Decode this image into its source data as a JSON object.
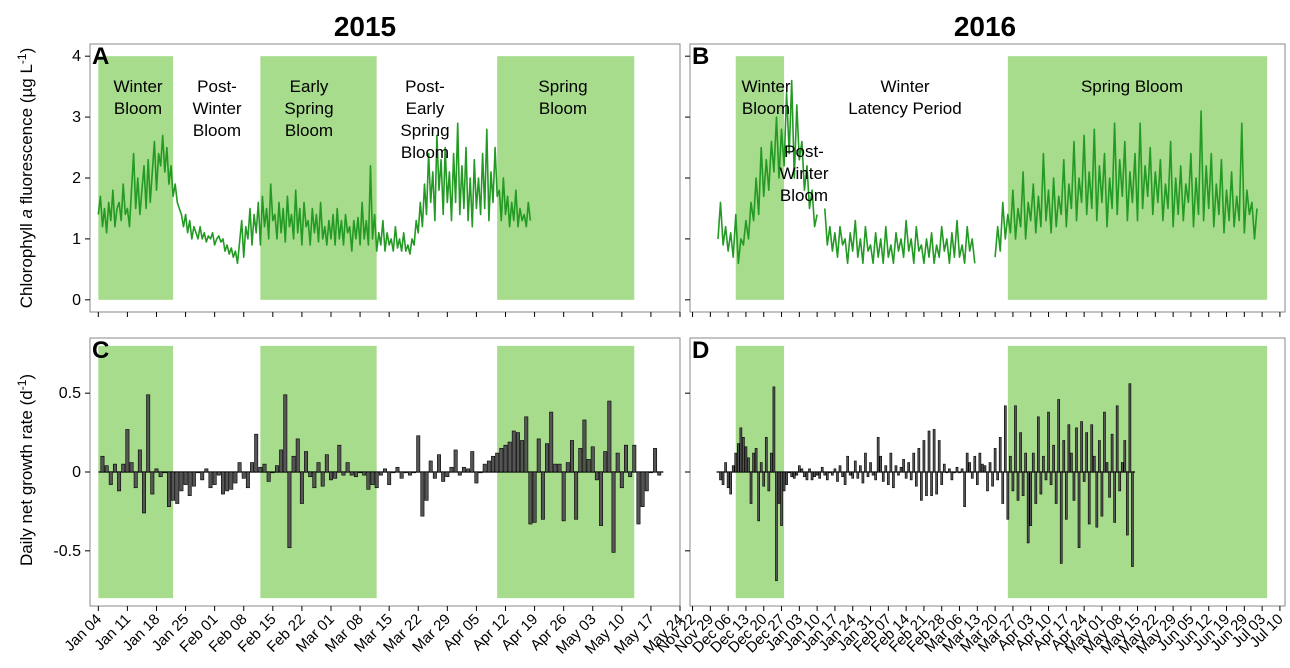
{
  "colors": {
    "bloom_fill": "#a6dc8c",
    "fluor_line": "#239a23",
    "bar_fill": "#555555",
    "frame": "#888888"
  },
  "titles": {
    "year_left": "2015",
    "year_right": "2016"
  },
  "ylabels": {
    "top": {
      "pre": "Chlorophyll ",
      "ital": "a",
      "post": " fluorescence (µg L",
      "sup": "-1",
      "close": ")"
    },
    "bottom": {
      "pre": "Daily net growth rate (d",
      "sup": "-1",
      "close": ")"
    }
  },
  "date_ticks_2015": [
    "Jan 04",
    "Jan 11",
    "Jan 18",
    "Jan 25",
    "Feb 01",
    "Feb 08",
    "Feb 15",
    "Feb 22",
    "Mar 01",
    "Mar 08",
    "Mar 15",
    "Mar 22",
    "Mar 29",
    "Apr 05",
    "Apr 12",
    "Apr 19",
    "Apr 26",
    "May 03",
    "May 10",
    "May 17",
    "May 24"
  ],
  "date_ticks_2016": [
    "Nov 22",
    "Nov 29",
    "Dec 06",
    "Dec 13",
    "Dec 20",
    "Dec 27",
    "Jan 03",
    "Jan 10",
    "Jan 17",
    "Jan 24",
    "Jan 31",
    "Feb 07",
    "Feb 14",
    "Feb 21",
    "Feb 28",
    "Mar 06",
    "Mar 13",
    "Mar 20",
    "Mar 27",
    "Apr 03",
    "Apr 10",
    "Apr 17",
    "Apr 24",
    "May 01",
    "May 08",
    "May 15",
    "May 22",
    "May 29",
    "Jun 05",
    "Jun 12",
    "Jun 19",
    "Jun 29",
    "Jul 03",
    "Jul 10"
  ],
  "chart_data": [
    {
      "panel": "A",
      "type": "line",
      "ylim": [
        -0.2,
        4.2
      ],
      "yticks": [
        "0",
        "1",
        "2",
        "3",
        "4"
      ],
      "x_range": [
        "2015-01-02",
        "2015-05-24"
      ],
      "phases": [
        {
          "name": "Winter Bloom",
          "start": "2015-01-04",
          "end": "2015-01-22",
          "shaded": true,
          "label": [
            "Winter",
            "Bloom"
          ]
        },
        {
          "name": "Post-Winter Bloom",
          "start": "2015-01-22",
          "end": "2015-02-12",
          "shaded": false,
          "label": [
            "Post-",
            "Winter",
            "Bloom"
          ]
        },
        {
          "name": "Early Spring Bloom",
          "start": "2015-02-12",
          "end": "2015-03-12",
          "shaded": true,
          "label": [
            "Early",
            "Spring",
            "Bloom"
          ]
        },
        {
          "name": "Post-Early Spring Bloom",
          "start": "2015-03-12",
          "end": "2015-04-10",
          "shaded": false,
          "label": [
            "Post-",
            "Early",
            "Spring",
            "Bloom"
          ]
        },
        {
          "name": "Spring Bloom",
          "start": "2015-04-10",
          "end": "2015-05-13",
          "shaded": true,
          "label": [
            "Spring",
            "Bloom"
          ]
        }
      ],
      "series": [
        {
          "segments": [
            {
              "start": "2015-01-04",
              "samples_per_day": 2,
              "values": [
                1.4,
                1.7,
                1.2,
                1.5,
                1.1,
                1.6,
                1.3,
                1.8,
                1.2,
                1.5,
                1.6,
                1.3,
                1.9,
                1.4,
                1.5,
                1.2,
                1.8,
                2.4,
                1.5,
                2.0,
                1.4,
                1.8,
                2.2,
                1.5,
                2.3,
                1.6,
                2.1,
                2.6,
                1.8,
                2.4,
                2.2,
                2.7,
                2.1,
                2.5,
                1.9,
                2.2,
                1.7,
                1.9,
                1.6,
                1.5,
                1.4,
                1.2,
                1.4,
                1.1,
                1.3,
                1.0,
                1.2,
                1.1,
                1.0,
                1.2,
                1.0,
                1.1,
                0.95,
                1.05,
                1.0,
                1.1,
                0.9,
                1.0,
                1.05,
                0.95,
                1.0,
                0.8,
                0.9,
                0.75,
                0.85,
                0.7,
                0.8,
                0.6,
                0.95,
                1.3,
                0.7,
                1.2,
                1.0,
                1.5,
                0.9,
                1.4,
                1.1,
                1.6,
                0.9,
                1.7,
                1.2,
                1.5,
                1.0,
                1.9,
                1.3,
                1.4,
                1.0,
                1.6,
                1.1,
                1.5,
                0.95,
                1.7,
                1.2,
                1.4,
                1.0,
                1.8,
                1.1,
                1.5,
                0.9,
                1.6,
                1.2,
                1.3,
                0.9,
                1.5,
                1.1,
                1.4,
                0.95,
                1.6,
                1.0,
                1.2,
                0.9,
                1.3,
                1.0,
                1.4,
                0.9,
                1.5,
                1.0,
                1.3,
                0.9,
                1.4,
                1.1,
                1.2,
                0.8,
                1.3,
                1.0,
                1.35,
                0.9,
                1.6,
                1.0,
                1.3,
                0.9,
                2.2,
                1.0,
                1.4,
                0.8,
                1.1,
                0.9,
                1.3,
                0.8,
                1.1,
                0.9,
                1.0,
                0.8,
                1.2,
                0.85,
                1.0,
                0.8,
                1.1,
                0.8,
                0.9,
                0.75,
                1.0,
                0.9,
                1.3,
                1.1,
                1.6,
                1.2,
                1.9,
                1.4,
                2.4,
                1.6,
                2.1,
                1.3,
                2.7,
                1.8,
                2.3,
                1.4,
                2.5,
                1.6,
                2.1,
                1.3,
                2.4,
                1.6,
                2.9,
                1.4,
                2.2,
                1.5,
                2.5,
                1.3,
                2.0,
                1.2,
                2.3,
                1.5,
                2.0,
                1.4,
                2.4,
                1.5,
                2.8,
                1.3,
                2.1,
                1.6,
                2.5,
                1.7,
                1.8,
                1.3,
                2.0,
                1.4,
                1.7,
                1.2,
                1.6,
                1.3,
                1.8,
                1.2,
                1.5,
                1.3,
                1.4,
                1.2,
                1.6,
                1.3
              ]
            }
          ]
        }
      ]
    },
    {
      "panel": "B",
      "type": "line",
      "ylim": [
        -0.2,
        4.2
      ],
      "yticks": [
        "0",
        "1",
        "2",
        "3",
        "4"
      ],
      "x_range": [
        "2015-11-21",
        "2016-07-12"
      ],
      "phases": [
        {
          "name": "Winter Bloom",
          "start": "2015-12-09",
          "end": "2015-12-28",
          "shaded": true,
          "label": [
            "Winter",
            "Bloom"
          ]
        },
        {
          "name": "Post-Winter Bloom",
          "start": "2015-12-28",
          "end": "2016-01-12",
          "shaded": false,
          "label": [
            "Post-",
            "Winter",
            "Bloom"
          ]
        },
        {
          "name": "Winter Latency Period",
          "start": "2016-01-12",
          "end": "2016-03-25",
          "shaded": false,
          "label": [
            "Winter",
            "Latency Period"
          ]
        },
        {
          "name": "Spring Bloom",
          "start": "2016-03-25",
          "end": "2016-07-05",
          "shaded": true,
          "label": [
            "Spring Bloom"
          ]
        }
      ],
      "series": [
        {
          "segments": [
            {
              "start": "2015-12-02",
              "samples_per_day": 1,
              "values": [
                1.0,
                1.6,
                0.9,
                1.2,
                0.8,
                1.1,
                0.7,
                1.4,
                0.6,
                1.0,
                0.9,
                1.3,
                1.0,
                1.6,
                1.3,
                2.0,
                1.4,
                2.5,
                1.7,
                2.3,
                1.8,
                2.6,
                2.1,
                3.0,
                2.0,
                2.8,
                2.2,
                3.4,
                2.4,
                3.6,
                2.0,
                3.2,
                2.3,
                2.6,
                1.8,
                2.2,
                1.5,
                1.8,
                1.2,
                1.4
              ]
            },
            {
              "start": "2016-01-13",
              "samples_per_day": 1,
              "values": [
                1.5,
                0.9,
                1.2,
                0.8,
                1.1,
                0.7,
                1.2,
                0.9,
                1.0,
                0.6,
                1.1,
                0.8,
                1.3,
                0.7,
                1.0,
                0.6,
                1.2,
                0.8,
                0.9,
                0.6,
                1.1,
                0.7,
                1.0,
                0.6,
                1.2,
                0.7,
                0.9,
                0.6,
                1.1,
                0.8,
                1.0,
                0.7,
                1.3,
                0.8,
                1.0,
                0.6,
                1.2,
                0.8,
                0.9,
                0.6,
                1.0,
                0.7,
                1.1,
                0.6,
                0.9,
                0.7,
                1.2,
                0.8,
                1.0,
                0.6,
                1.1,
                0.7,
                1.3,
                0.7,
                0.9,
                0.6,
                1.2,
                0.8,
                1.0,
                0.6
              ]
            },
            {
              "start": "2016-03-20",
              "samples_per_day": 1,
              "values": [
                0.7,
                1.2,
                0.8,
                1.6,
                1.0,
                1.4,
                1.1,
                1.8,
                1.0,
                1.5,
                1.2,
                2.1,
                1.0,
                1.6,
                1.3,
                1.9,
                1.1,
                1.7,
                1.2,
                2.4,
                1.3,
                1.8,
                1.1,
                2.0,
                1.2,
                1.7,
                1.4,
                2.3,
                1.2,
                1.9,
                1.5,
                2.6,
                1.3,
                2.0,
                1.6,
                2.7,
                1.4,
                2.1,
                1.5,
                2.8,
                1.3,
                2.2,
                1.6,
                2.4,
                1.2,
                2.0,
                1.5,
                2.9,
                1.4,
                2.3,
                1.7,
                2.6,
                1.3,
                2.1,
                1.6,
                2.4,
                1.3,
                2.9,
                1.5,
                2.2,
                1.7,
                2.5,
                1.4,
                2.1,
                1.6,
                2.3,
                1.3,
                1.9,
                1.5,
                2.6,
                1.2,
                2.0,
                1.4,
                2.2,
                1.3,
                1.9,
                1.6,
                2.4,
                1.2,
                2.0,
                1.4,
                3.1,
                1.3,
                2.2,
                1.5,
                2.4,
                1.2,
                1.9,
                1.4,
                2.3,
                1.1,
                1.8,
                1.3,
                2.1,
                1.2,
                1.7,
                1.3,
                2.9,
                1.1,
                1.8,
                1.4,
                1.6,
                1.0,
                1.5
              ]
            }
          ]
        }
      ]
    },
    {
      "panel": "C",
      "type": "bar",
      "ylim": [
        -0.85,
        0.85
      ],
      "yticks": [
        "-0.5",
        "0",
        "0.5"
      ],
      "x_range": [
        "2015-01-02",
        "2015-05-24"
      ],
      "phases": [
        {
          "name": "Winter Bloom",
          "start": "2015-01-04",
          "end": "2015-01-22",
          "shaded": true
        },
        {
          "name": "Post-Winter Bloom",
          "start": "2015-01-22",
          "end": "2015-02-12",
          "shaded": false
        },
        {
          "name": "Early Spring Bloom",
          "start": "2015-02-12",
          "end": "2015-03-12",
          "shaded": true
        },
        {
          "name": "Post-Early Spring Bloom",
          "start": "2015-03-12",
          "end": "2015-04-10",
          "shaded": false
        },
        {
          "name": "Spring Bloom",
          "start": "2015-04-10",
          "end": "2015-05-13",
          "shaded": true
        }
      ],
      "start_date": "2015-01-05",
      "values": [
        0.1,
        0.04,
        -0.08,
        0.05,
        -0.12,
        0.05,
        0.27,
        0.06,
        -0.1,
        0.14,
        -0.26,
        0.49,
        -0.14,
        0.02,
        -0.03,
        0.0,
        -0.22,
        -0.18,
        -0.2,
        -0.12,
        -0.08,
        -0.15,
        -0.09,
        0.0,
        -0.05,
        0.02,
        -0.1,
        -0.08,
        -0.02,
        -0.14,
        -0.12,
        -0.11,
        -0.07,
        0.06,
        -0.04,
        -0.1,
        0.06,
        0.24,
        0.03,
        0.05,
        -0.06,
        0.0,
        0.04,
        0.14,
        0.49,
        -0.48,
        0.1,
        0.21,
        -0.2,
        0.13,
        -0.03,
        -0.1,
        0.06,
        -0.09,
        0.11,
        -0.05,
        -0.04,
        0.17,
        -0.02,
        0.06,
        -0.02,
        -0.03,
        0.0,
        -0.02,
        -0.11,
        -0.08,
        -0.1,
        -0.02,
        0.02,
        -0.08,
        0.0,
        0.03,
        -0.04,
        0.0,
        -0.02,
        0.0,
        0.23,
        -0.28,
        -0.18,
        0.07,
        -0.04,
        0.11,
        -0.06,
        -0.03,
        0.03,
        0.14,
        -0.02,
        0.03,
        0.02,
        0.13,
        -0.07,
        0.0,
        0.05,
        0.07,
        0.1,
        0.12,
        0.15,
        0.17,
        0.19,
        0.26,
        0.25,
        0.2,
        0.35,
        -0.33,
        -0.32,
        0.21,
        -0.3,
        0.18,
        0.38,
        0.05,
        0.05,
        -0.31,
        0.06,
        0.2,
        -0.3,
        0.15,
        0.33,
        0.08,
        0.16,
        -0.05,
        -0.34,
        0.13,
        0.45,
        -0.51,
        0.12,
        -0.1,
        0.17,
        -0.03,
        0.17,
        -0.33,
        -0.22,
        -0.12,
        0.0,
        0.15,
        -0.02
      ]
    },
    {
      "panel": "D",
      "type": "bar",
      "ylim": [
        -0.85,
        0.85
      ],
      "yticks": [
        "-0.5",
        "0",
        "0.5"
      ],
      "x_range": [
        "2015-11-21",
        "2016-07-12"
      ],
      "phases": [
        {
          "name": "Winter Bloom",
          "start": "2015-12-09",
          "end": "2015-12-28",
          "shaded": true
        },
        {
          "name": "Spring Bloom",
          "start": "2016-03-25",
          "end": "2016-07-05",
          "shaded": true
        }
      ],
      "start_date": "2015-12-03",
      "values": [
        -0.05,
        -0.08,
        0.06,
        -0.1,
        -0.14,
        0.04,
        0.12,
        0.18,
        0.28,
        0.22,
        0.16,
        0.09,
        -0.2,
        0.12,
        0.15,
        -0.31,
        0.06,
        -0.09,
        0.22,
        -0.12,
        0.12,
        0.54,
        -0.69,
        -0.2,
        -0.34,
        -0.12,
        -0.08,
        0.0,
        -0.03,
        -0.04,
        -0.02,
        0.04,
        0.02,
        -0.03,
        -0.05,
        0.02,
        -0.05,
        -0.03,
        -0.02,
        -0.04,
        0.03,
        -0.02,
        -0.05,
        0.0,
        -0.02,
        0.02,
        -0.06,
        0.04,
        -0.03,
        -0.08,
        0.1,
        -0.02,
        -0.04,
        0.07,
        -0.04,
        0.04,
        -0.07,
        0.12,
        -0.03,
        0.06,
        -0.02,
        -0.05,
        0.22,
        0.1,
        -0.06,
        0.04,
        -0.08,
        0.12,
        -0.1,
        0.04,
        -0.02,
        0.03,
        0.08,
        -0.04,
        0.06,
        -0.05,
        0.12,
        -0.09,
        0.15,
        -0.18,
        0.2,
        -0.15,
        0.26,
        -0.15,
        0.27,
        -0.14,
        0.2,
        -0.08,
        0.05,
        0.0,
        0.02,
        -0.05,
        0.0,
        0.03,
        0.0,
        0.02,
        -0.22,
        0.12,
        0.06,
        -0.04,
        0.1,
        -0.08,
        0.12,
        0.05,
        0.04,
        -0.12,
        0.06,
        -0.09,
        0.15,
        -0.05,
        0.22,
        -0.2,
        0.42,
        -0.3,
        0.1,
        -0.12,
        0.42,
        -0.18,
        0.25,
        -0.15,
        0.12,
        -0.45,
        -0.34,
        0.12,
        -0.2,
        0.35,
        -0.14,
        0.1,
        -0.05,
        0.38,
        -0.08,
        0.17,
        -0.2,
        0.46,
        -0.58,
        0.2,
        -0.3,
        0.3,
        0.12,
        -0.18,
        0.28,
        -0.48,
        0.32,
        -0.06,
        0.25,
        -0.33,
        0.3,
        0.1,
        -0.35,
        0.2,
        -0.28,
        0.38,
        0.06,
        -0.16,
        0.24,
        -0.32,
        0.42,
        -0.12,
        0.06,
        0.2,
        -0.4,
        0.56,
        -0.6
      ]
    }
  ]
}
